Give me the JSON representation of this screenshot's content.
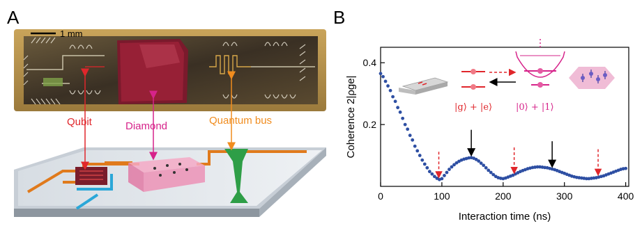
{
  "panel_a": {
    "letter": "A",
    "scale_bar": "1 mm",
    "labels": {
      "qubit": "Qubit",
      "diamond": "Diamond",
      "quantum_bus": "Quantum bus"
    },
    "colors": {
      "qubit": "#e0262b",
      "diamond": "#d6238a",
      "quantum_bus": "#f08c1e"
    }
  },
  "panel_b": {
    "letter": "B",
    "inset": {
      "qubit_state": "|g⟩ + |e⟩",
      "oscillator_state": "|0⟩ + |1⟩"
    }
  },
  "chart_data": {
    "type": "scatter",
    "title": "",
    "xlabel": "Interaction time (ns)",
    "ylabel": "Coherence 2|ρge|",
    "xlim": [
      0,
      405
    ],
    "ylim": [
      0,
      0.45
    ],
    "xticks": [
      0,
      100,
      200,
      300,
      400
    ],
    "yticks": [
      0.2,
      0.4
    ],
    "ytick_labels": [
      "0.2",
      "0.4"
    ],
    "marker_color": "#2e4fa3",
    "series": [
      {
        "x": [
          0,
          4,
          8,
          12,
          16,
          20,
          24,
          28,
          32,
          36,
          40,
          44,
          48,
          52,
          56,
          60,
          64,
          68,
          72,
          76,
          80,
          84,
          88,
          92,
          96,
          100,
          104,
          108,
          112,
          116,
          120,
          124,
          128,
          132,
          136,
          140,
          144,
          148,
          152,
          156,
          160,
          164,
          168,
          172,
          176,
          180,
          184,
          188,
          192,
          196,
          200,
          204,
          208,
          212,
          216,
          220,
          224,
          228,
          232,
          236,
          240,
          244,
          248,
          252,
          256,
          260,
          264,
          268,
          272,
          276,
          280,
          284,
          288,
          292,
          296,
          300,
          304,
          308,
          312,
          316,
          320,
          324,
          328,
          332,
          336,
          340,
          344,
          348,
          352,
          356,
          360,
          364,
          368,
          372,
          376,
          380,
          384,
          388,
          392,
          396,
          400
        ],
        "y": [
          0.365,
          0.355,
          0.34,
          0.325,
          0.31,
          0.29,
          0.275,
          0.255,
          0.24,
          0.22,
          0.2,
          0.185,
          0.165,
          0.15,
          0.13,
          0.115,
          0.1,
          0.085,
          0.072,
          0.06,
          0.048,
          0.04,
          0.032,
          0.026,
          0.022,
          0.025,
          0.035,
          0.045,
          0.055,
          0.063,
          0.07,
          0.076,
          0.081,
          0.085,
          0.088,
          0.09,
          0.092,
          0.093,
          0.091,
          0.087,
          0.082,
          0.075,
          0.068,
          0.06,
          0.052,
          0.045,
          0.038,
          0.032,
          0.028,
          0.026,
          0.025,
          0.027,
          0.03,
          0.033,
          0.036,
          0.04,
          0.044,
          0.048,
          0.051,
          0.054,
          0.057,
          0.059,
          0.061,
          0.062,
          0.063,
          0.063,
          0.062,
          0.061,
          0.06,
          0.058,
          0.056,
          0.054,
          0.051,
          0.048,
          0.045,
          0.042,
          0.039,
          0.036,
          0.033,
          0.031,
          0.029,
          0.028,
          0.027,
          0.026,
          0.025,
          0.025,
          0.026,
          0.027,
          0.028,
          0.03,
          0.032,
          0.034,
          0.037,
          0.04,
          0.043,
          0.046,
          0.049,
          0.052,
          0.055,
          0.057,
          0.058
        ]
      }
    ],
    "arrows_red_dashed_x": [
      95,
      218,
      355
    ],
    "arrows_black_x": [
      148,
      280
    ]
  }
}
